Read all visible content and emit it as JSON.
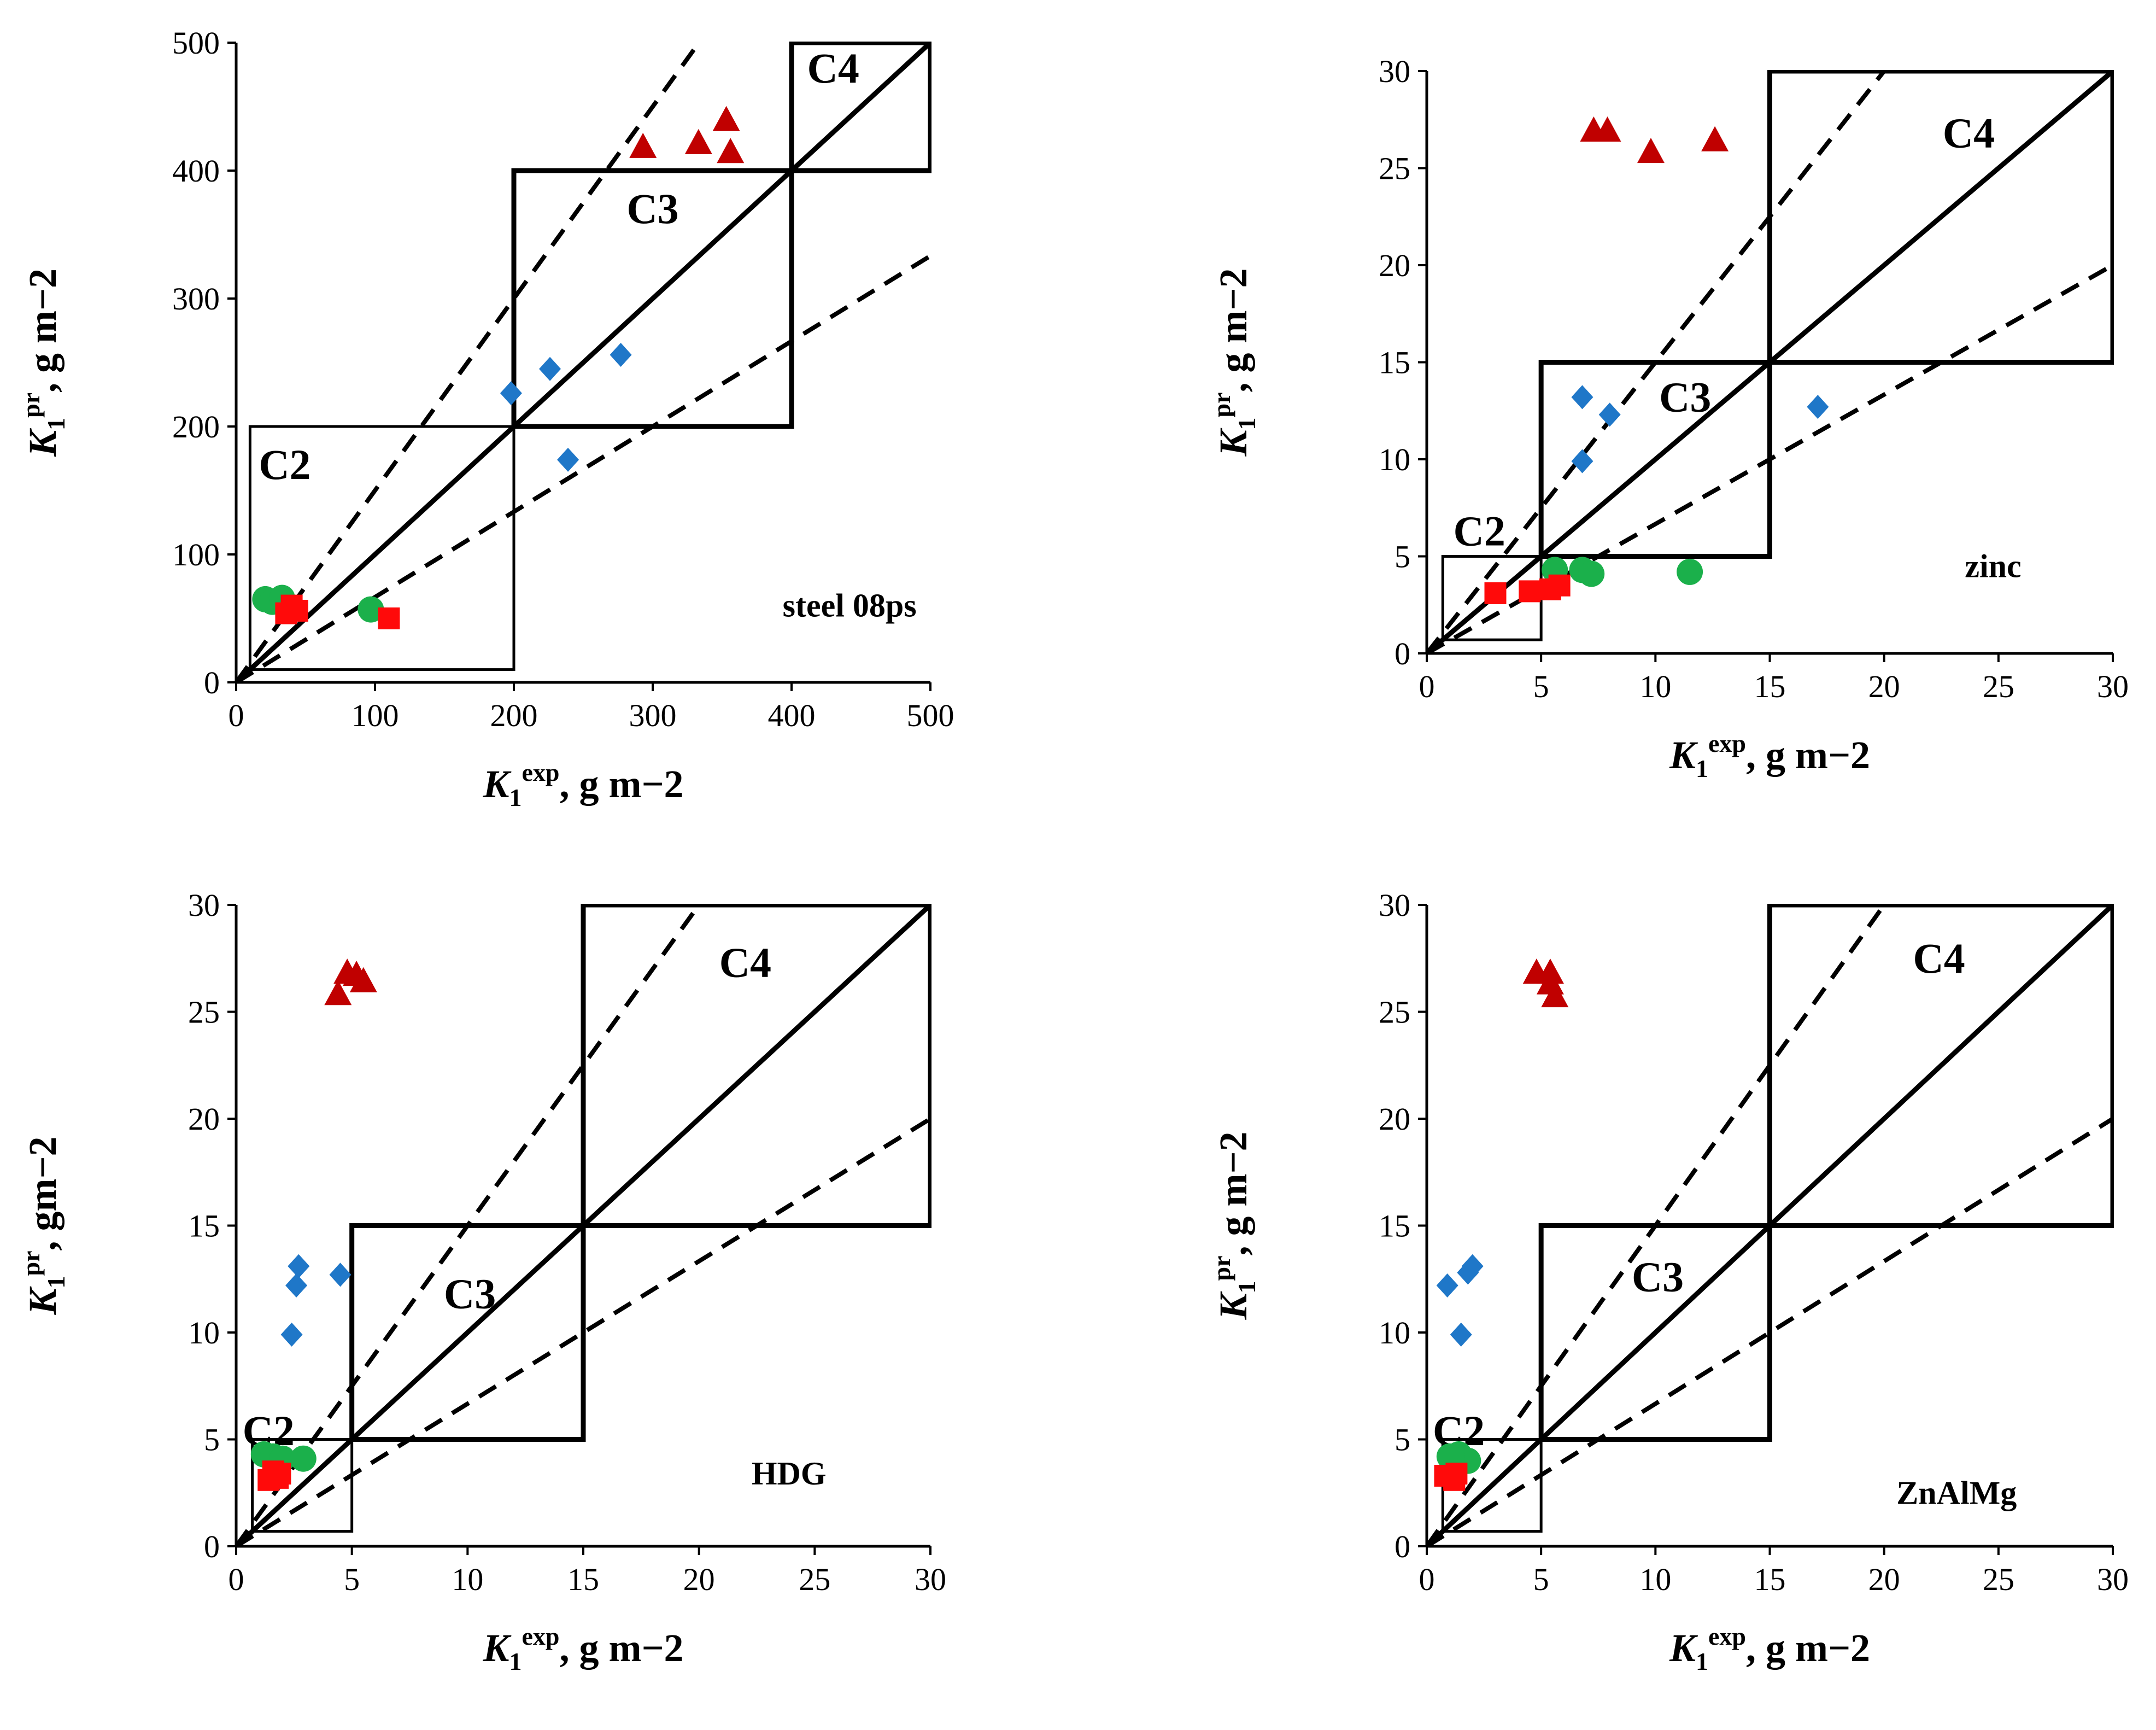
{
  "colors": {
    "triangle": "#C00000",
    "diamond": "#1F77C8",
    "circle": "#1BB04B",
    "square": "#FF0A0A",
    "lines": "#000000"
  },
  "chart_data": [
    {
      "type": "scatter",
      "title": "steel 08ps",
      "xlabel": {
        "sym": "K",
        "sub": "1",
        "sup": "exp",
        "unit": ", g m−2"
      },
      "ylabel": {
        "sym": "K",
        "sub": "1",
        "sup": "pr",
        "unit": ", g m−2"
      },
      "xlim": [
        0,
        500
      ],
      "ylim": [
        0,
        500
      ],
      "xticks": [
        "0",
        "100",
        "200",
        "300",
        "400",
        "500"
      ],
      "yticks": [
        "0",
        "100",
        "200",
        "300",
        "400",
        "500"
      ],
      "tick_values": [
        0,
        100,
        200,
        300,
        400,
        500
      ],
      "zone_boxes": [
        {
          "x0": 10,
          "x1": 200,
          "y0": 10,
          "y1": 200
        },
        {
          "x0": 200,
          "x1": 400,
          "y0": 200,
          "y1": 400
        },
        {
          "x0": 400,
          "x1": 500,
          "y0": 400,
          "y1": 500
        }
      ],
      "zone_labels": [
        {
          "text": "C2",
          "x": 35,
          "y": 170
        },
        {
          "text": "C3",
          "x": 300,
          "y": 370
        },
        {
          "text": "C4",
          "x": 430,
          "y": 480
        }
      ],
      "title_pos": {
        "x": 490,
        "y": 60
      },
      "series": [
        {
          "name": "triangle",
          "marker": "triangle",
          "points": [
            [
              293,
              418
            ],
            [
              333,
              421
            ],
            [
              353,
              439
            ],
            [
              356,
              414
            ]
          ]
        },
        {
          "name": "diamond",
          "marker": "diamond",
          "points": [
            [
              198,
              226
            ],
            [
              226,
              245
            ],
            [
              277,
              256
            ],
            [
              239,
              174
            ]
          ]
        },
        {
          "name": "circle",
          "marker": "circle",
          "points": [
            [
              21,
              65
            ],
            [
              26,
              63
            ],
            [
              33,
              66
            ],
            [
              97,
              57
            ]
          ]
        },
        {
          "name": "square",
          "marker": "square",
          "points": [
            [
              36,
              54
            ],
            [
              40,
              60
            ],
            [
              44,
              56
            ],
            [
              110,
              50
            ]
          ]
        }
      ]
    },
    {
      "type": "scatter",
      "title": "zinc",
      "xlabel": {
        "sym": "K",
        "sub": "1",
        "sup": "exp",
        "unit": ", g m−2"
      },
      "ylabel": {
        "sym": "K",
        "sub": "1",
        "sup": "pr",
        "unit": ", g m−2"
      },
      "xlim": [
        0,
        30
      ],
      "ylim": [
        0,
        30
      ],
      "xticks": [
        "0",
        "5",
        "10",
        "15",
        "20",
        "25",
        "30"
      ],
      "yticks": [
        "0",
        "5",
        "10",
        "15",
        "20",
        "25",
        "30"
      ],
      "tick_values": [
        0,
        5,
        10,
        15,
        20,
        25,
        30
      ],
      "zone_boxes": [
        {
          "x0": 0.7,
          "x1": 5,
          "y0": 0.7,
          "y1": 5
        },
        {
          "x0": 5,
          "x1": 15,
          "y0": 5,
          "y1": 15
        },
        {
          "x0": 15,
          "x1": 30,
          "y0": 15,
          "y1": 30
        }
      ],
      "zone_labels": [
        {
          "text": "C2",
          "x": 2.3,
          "y": 6.3
        },
        {
          "text": "C3",
          "x": 11.3,
          "y": 13.2
        },
        {
          "text": "C4",
          "x": 23.7,
          "y": 26.8
        }
      ],
      "title_pos": {
        "x": 26,
        "y": 4.5
      },
      "series": [
        {
          "name": "triangle",
          "marker": "triangle",
          "points": [
            [
              7.3,
              26.9
            ],
            [
              7.9,
              26.9
            ],
            [
              9.8,
              25.8
            ],
            [
              12.6,
              26.4
            ]
          ]
        },
        {
          "name": "diamond",
          "marker": "diamond",
          "points": [
            [
              6.8,
              13.2
            ],
            [
              8.0,
              12.3
            ],
            [
              6.8,
              9.9
            ],
            [
              17.1,
              12.7
            ]
          ]
        },
        {
          "name": "circle",
          "marker": "circle",
          "points": [
            [
              5.6,
              4.3
            ],
            [
              6.8,
              4.3
            ],
            [
              7.2,
              4.1
            ],
            [
              11.5,
              4.2
            ]
          ]
        },
        {
          "name": "square",
          "marker": "square",
          "points": [
            [
              3.0,
              3.1
            ],
            [
              4.5,
              3.2
            ],
            [
              5.4,
              3.3
            ],
            [
              5.8,
              3.5
            ]
          ]
        }
      ]
    },
    {
      "type": "scatter",
      "title": "HDG",
      "xlabel": {
        "sym": "K",
        "sub": "1",
        "sup": "exp",
        "unit": ", g m−2"
      },
      "ylabel": {
        "sym": "K",
        "sub": "1",
        "sup": "pr",
        "unit": ", gm−2"
      },
      "xlim": [
        0,
        30
      ],
      "ylim": [
        0,
        30
      ],
      "xticks": [
        "0",
        "5",
        "10",
        "15",
        "20",
        "25",
        "30"
      ],
      "yticks": [
        "0",
        "5",
        "10",
        "15",
        "20",
        "25",
        "30"
      ],
      "tick_values": [
        0,
        5,
        10,
        15,
        20,
        25,
        30
      ],
      "zone_boxes": [
        {
          "x0": 0.7,
          "x1": 5,
          "y0": 0.7,
          "y1": 5
        },
        {
          "x0": 5,
          "x1": 15,
          "y0": 5,
          "y1": 15
        },
        {
          "x0": 15,
          "x1": 30,
          "y0": 15,
          "y1": 30
        }
      ],
      "zone_labels": [
        {
          "text": "C2",
          "x": 1.4,
          "y": 5.4
        },
        {
          "text": "C3",
          "x": 10.1,
          "y": 11.8
        },
        {
          "text": "C4",
          "x": 22,
          "y": 27.3
        }
      ],
      "title_pos": {
        "x": 25.5,
        "y": 3.4
      },
      "series": [
        {
          "name": "triangle",
          "marker": "triangle",
          "points": [
            [
              4.4,
              25.8
            ],
            [
              4.8,
              26.8
            ],
            [
              5.2,
              26.7
            ],
            [
              5.5,
              26.4
            ]
          ]
        },
        {
          "name": "diamond",
          "marker": "diamond",
          "points": [
            [
              2.7,
              13.1
            ],
            [
              2.6,
              12.2
            ],
            [
              4.5,
              12.7
            ],
            [
              2.4,
              9.9
            ]
          ]
        },
        {
          "name": "circle",
          "marker": "circle",
          "points": [
            [
              1.2,
              4.3
            ],
            [
              1.6,
              4.2
            ],
            [
              2.0,
              4.1
            ],
            [
              2.9,
              4.1
            ]
          ]
        },
        {
          "name": "square",
          "marker": "square",
          "points": [
            [
              1.4,
              3.1
            ],
            [
              1.6,
              3.5
            ],
            [
              1.8,
              3.2
            ],
            [
              1.9,
              3.4
            ]
          ]
        }
      ]
    },
    {
      "type": "scatter",
      "title": "ZnAlMg",
      "xlabel": {
        "sym": "K",
        "sub": "1",
        "sup": "exp",
        "unit": ", g m−2"
      },
      "ylabel": {
        "sym": "K",
        "sub": "1",
        "sup": "pr",
        "unit": ", g m−2"
      },
      "xlim": [
        0,
        30
      ],
      "ylim": [
        0,
        30
      ],
      "xticks": [
        "0",
        "5",
        "10",
        "15",
        "20",
        "25",
        "30"
      ],
      "yticks": [
        "0",
        "5",
        "10",
        "15",
        "20",
        "25",
        "30"
      ],
      "tick_values": [
        0,
        5,
        10,
        15,
        20,
        25,
        30
      ],
      "zone_boxes": [
        {
          "x0": 0.7,
          "x1": 5,
          "y0": 0.7,
          "y1": 5
        },
        {
          "x0": 5,
          "x1": 15,
          "y0": 5,
          "y1": 15
        },
        {
          "x0": 15,
          "x1": 30,
          "y0": 15,
          "y1": 30
        }
      ],
      "zone_labels": [
        {
          "text": "C2",
          "x": 1.4,
          "y": 5.4
        },
        {
          "text": "C3",
          "x": 10.1,
          "y": 12.6
        },
        {
          "text": "C4",
          "x": 22.4,
          "y": 27.5
        }
      ],
      "title_pos": {
        "x": 25.8,
        "y": 2.5
      },
      "series": [
        {
          "name": "triangle",
          "marker": "triangle",
          "points": [
            [
              4.8,
              26.8
            ],
            [
              5.4,
              26.8
            ],
            [
              5.6,
              25.7
            ],
            [
              5.4,
              26.3
            ]
          ]
        },
        {
          "name": "diamond",
          "marker": "diamond",
          "points": [
            [
              0.9,
              12.2
            ],
            [
              1.8,
              12.8
            ],
            [
              2.0,
              13.1
            ],
            [
              1.5,
              9.9
            ]
          ]
        },
        {
          "name": "circle",
          "marker": "circle",
          "points": [
            [
              1.0,
              4.2
            ],
            [
              1.4,
              4.3
            ],
            [
              1.8,
              4.0
            ],
            [
              1.1,
              4.1
            ]
          ]
        },
        {
          "name": "square",
          "marker": "square",
          "points": [
            [
              0.8,
              3.3
            ],
            [
              1.2,
              3.1
            ],
            [
              1.3,
              3.4
            ],
            [
              1.2,
              3.2
            ]
          ]
        }
      ]
    }
  ]
}
